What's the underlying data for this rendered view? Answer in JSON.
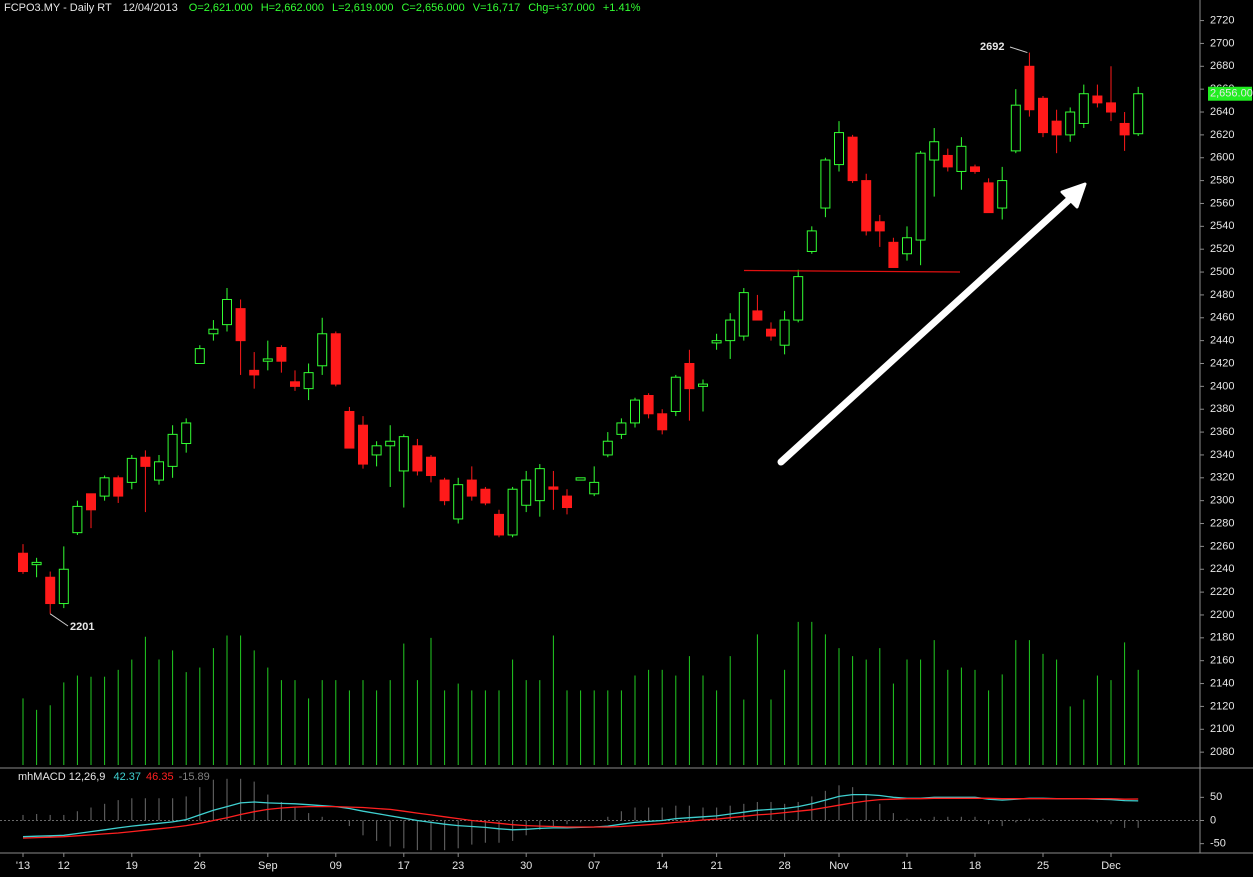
{
  "chart_data": {
    "type": "candlestick",
    "title": "FCPO3.MY - Daily RT",
    "date": "12/04/2013",
    "quote": [
      "O=2,621.000",
      "H=2,662.000",
      "L=2,619.000",
      "C=2,656.000",
      "V=16,717",
      "Chg=+37.000",
      "+1.41%"
    ],
    "categories": [
      "'13",
      null,
      null,
      "12",
      null,
      null,
      null,
      null,
      "19",
      null,
      null,
      null,
      null,
      "26",
      null,
      null,
      null,
      null,
      "Sep",
      null,
      null,
      null,
      null,
      "09",
      null,
      null,
      null,
      null,
      "17",
      null,
      null,
      null,
      "23",
      null,
      null,
      null,
      null,
      "30",
      null,
      null,
      null,
      null,
      "07",
      null,
      null,
      null,
      null,
      "14",
      null,
      null,
      null,
      "21",
      null,
      null,
      null,
      null,
      "28",
      null,
      null,
      null,
      "Nov",
      null,
      null,
      null,
      null,
      "11",
      null,
      null,
      null,
      null,
      "18",
      null,
      null,
      null,
      null,
      "25",
      null,
      null,
      null,
      null,
      "Dec",
      null,
      null
    ],
    "open": [
      2254,
      2244,
      2233,
      2210,
      2272,
      2306,
      2304,
      2320,
      2316,
      2338,
      2318,
      2330,
      2350,
      2420,
      2446,
      2454,
      2468,
      2414,
      2422,
      2434,
      2404,
      2398,
      2418,
      2446,
      2378,
      2366,
      2340,
      2348,
      2326,
      2348,
      2338,
      2318,
      2284,
      2318,
      2310,
      2288,
      2270,
      2296,
      2300,
      2312,
      2304,
      2318,
      2306,
      2340,
      2358,
      2368,
      2392,
      2376,
      2378,
      2420,
      2400,
      2438,
      2440,
      2444,
      2466,
      2450,
      2436,
      2458,
      2518,
      2556,
      2594,
      2618,
      2580,
      2544,
      2526,
      2516,
      2528,
      2598,
      2602,
      2588,
      2592,
      2578,
      2556,
      2606,
      2680,
      2652,
      2632,
      2620,
      2630,
      2654,
      2648,
      2630,
      2621
    ],
    "high": [
      2262,
      2250,
      2238,
      2260,
      2300,
      2306,
      2322,
      2322,
      2340,
      2344,
      2340,
      2366,
      2372,
      2436,
      2458,
      2486,
      2476,
      2430,
      2440,
      2436,
      2414,
      2420,
      2460,
      2448,
      2382,
      2374,
      2352,
      2366,
      2358,
      2354,
      2340,
      2320,
      2320,
      2330,
      2312,
      2292,
      2312,
      2326,
      2332,
      2326,
      2310,
      2320,
      2330,
      2360,
      2372,
      2390,
      2394,
      2380,
      2410,
      2432,
      2406,
      2446,
      2464,
      2486,
      2480,
      2456,
      2466,
      2502,
      2540,
      2600,
      2632,
      2620,
      2586,
      2550,
      2530,
      2540,
      2606,
      2626,
      2608,
      2618,
      2594,
      2582,
      2592,
      2660,
      2692,
      2654,
      2642,
      2644,
      2664,
      2664,
      2680,
      2640,
      2662
    ],
    "low": [
      2236,
      2233,
      2201,
      2206,
      2270,
      2276,
      2300,
      2298,
      2310,
      2290,
      2314,
      2320,
      2342,
      2420,
      2440,
      2448,
      2410,
      2398,
      2414,
      2412,
      2396,
      2388,
      2410,
      2400,
      2346,
      2328,
      2330,
      2312,
      2294,
      2322,
      2316,
      2296,
      2280,
      2300,
      2296,
      2268,
      2268,
      2290,
      2286,
      2292,
      2288,
      2318,
      2304,
      2338,
      2354,
      2364,
      2372,
      2358,
      2374,
      2370,
      2378,
      2432,
      2424,
      2440,
      2462,
      2440,
      2428,
      2456,
      2516,
      2548,
      2588,
      2578,
      2532,
      2522,
      2504,
      2510,
      2506,
      2566,
      2588,
      2572,
      2586,
      2554,
      2546,
      2604,
      2636,
      2618,
      2604,
      2614,
      2626,
      2644,
      2632,
      2606,
      2619
    ],
    "close": [
      2238,
      2246,
      2210,
      2240,
      2295,
      2292,
      2320,
      2304,
      2337,
      2330,
      2334,
      2358,
      2368,
      2433,
      2450,
      2476,
      2440,
      2410,
      2424,
      2422,
      2400,
      2412,
      2446,
      2402,
      2346,
      2332,
      2348,
      2352,
      2356,
      2326,
      2322,
      2300,
      2314,
      2304,
      2298,
      2270,
      2310,
      2318,
      2328,
      2310,
      2294,
      2320,
      2316,
      2352,
      2368,
      2388,
      2376,
      2362,
      2408,
      2398,
      2402,
      2440,
      2458,
      2482,
      2458,
      2444,
      2458,
      2496,
      2536,
      2598,
      2622,
      2580,
      2536,
      2536,
      2504,
      2530,
      2604,
      2614,
      2592,
      2610,
      2588,
      2552,
      2580,
      2646,
      2642,
      2622,
      2620,
      2640,
      2656,
      2648,
      2640,
      2620,
      2656
    ],
    "up_color": "#33ff33",
    "down_color": "#ff1a1a",
    "volume": [
      2127,
      2117,
      2121,
      2141,
      2147,
      2146,
      2146,
      2152,
      2161,
      2181,
      2161,
      2169,
      2150,
      2154,
      2171,
      2182,
      2182,
      2169,
      2154,
      2143,
      2143,
      2127,
      2143,
      2143,
      2134,
      2143,
      2134,
      2143,
      2175,
      2143,
      2180,
      2134,
      2140,
      2134,
      2134,
      2134,
      2161,
      2143,
      2143,
      2182,
      2134,
      2134,
      2134,
      2134,
      2134,
      2147,
      2152,
      2152,
      2147,
      2164,
      2147,
      2134,
      2164,
      2126,
      2183,
      2126,
      2152,
      2194,
      2194,
      2183,
      2171,
      2164,
      2161,
      2171,
      2140,
      2161,
      2161,
      2178,
      2152,
      2154,
      2152,
      2134,
      2148,
      2178,
      2178,
      2166,
      2161,
      2120,
      2126,
      2147,
      2143,
      2176,
      2152
    ],
    "volume_color": "#22cc22",
    "ylim": [
      2067,
      2738
    ],
    "yticks": [
      2080,
      2100,
      2120,
      2140,
      2160,
      2180,
      2200,
      2220,
      2240,
      2260,
      2280,
      2300,
      2320,
      2340,
      2360,
      2380,
      2400,
      2420,
      2440,
      2460,
      2480,
      2500,
      2520,
      2540,
      2560,
      2580,
      2600,
      2620,
      2640,
      2660,
      2680,
      2700,
      2720
    ],
    "last_price": {
      "value": 2656,
      "label": "2,656.00"
    },
    "last_price_color": "#22ee22",
    "macd": {
      "type": "line",
      "name": "mhMACD 12,26,9",
      "ylim": [
        -68,
        109
      ],
      "yticks": [
        -50,
        0,
        50
      ],
      "series": [
        {
          "color": "#3fd0d0",
          "values": [
            -35,
            -34,
            -33,
            -32,
            -28,
            -24,
            -20,
            -16,
            -12,
            -9,
            -6,
            -3,
            2,
            12,
            22,
            30,
            38,
            40,
            38,
            37,
            36,
            34,
            32,
            30,
            26,
            20,
            15,
            10,
            5,
            0,
            -4,
            -8,
            -11,
            -13,
            -15,
            -18,
            -20,
            -19,
            -17,
            -16,
            -16,
            -15,
            -14,
            -12,
            -8,
            -4,
            -2,
            0,
            4,
            6,
            8,
            10,
            14,
            18,
            22,
            24,
            26,
            30,
            36,
            44,
            52,
            56,
            56,
            54,
            50,
            48,
            48,
            50,
            50,
            50,
            50,
            46,
            44,
            46,
            48,
            48,
            47,
            47,
            47,
            46,
            45,
            43,
            42.37
          ]
        },
        {
          "color": "#ff2020",
          "values": [
            -38,
            -37,
            -36,
            -35,
            -33,
            -31,
            -29,
            -27,
            -24,
            -21,
            -18,
            -15,
            -11,
            -6,
            0,
            6,
            13,
            19,
            24,
            27,
            29,
            30,
            30,
            30,
            29,
            28,
            26,
            24,
            20,
            16,
            12,
            8,
            4,
            0,
            -3,
            -6,
            -9,
            -11,
            -12,
            -13,
            -14,
            -14,
            -14,
            -14,
            -13,
            -11,
            -9,
            -7,
            -4,
            -2,
            1,
            3,
            6,
            9,
            12,
            14,
            17,
            20,
            23,
            28,
            33,
            38,
            42,
            45,
            46,
            47,
            47,
            48,
            48,
            48,
            48,
            48,
            47,
            47,
            47,
            47,
            47,
            47,
            47,
            47,
            47,
            46,
            46.35
          ]
        },
        {
          "type": "bar",
          "color": "#5a5a5a",
          "values": [
            12,
            14,
            12,
            12,
            20,
            28,
            36,
            44,
            48,
            48,
            48,
            48,
            52,
            72,
            88,
            90,
            90,
            84,
            56,
            40,
            28,
            16,
            8,
            0,
            -12,
            -32,
            -44,
            -56,
            -60,
            -64,
            -64,
            -64,
            -60,
            -52,
            -48,
            -48,
            -44,
            -32,
            -20,
            -12,
            -8,
            -4,
            0,
            8,
            20,
            28,
            28,
            28,
            32,
            32,
            28,
            28,
            32,
            36,
            40,
            40,
            36,
            40,
            52,
            64,
            76,
            72,
            56,
            36,
            16,
            4,
            4,
            8,
            8,
            8,
            8,
            -8,
            -12,
            -4,
            4,
            4,
            0,
            0,
            0,
            -4,
            -8,
            -16,
            -15.89
          ]
        }
      ]
    }
  }
}
